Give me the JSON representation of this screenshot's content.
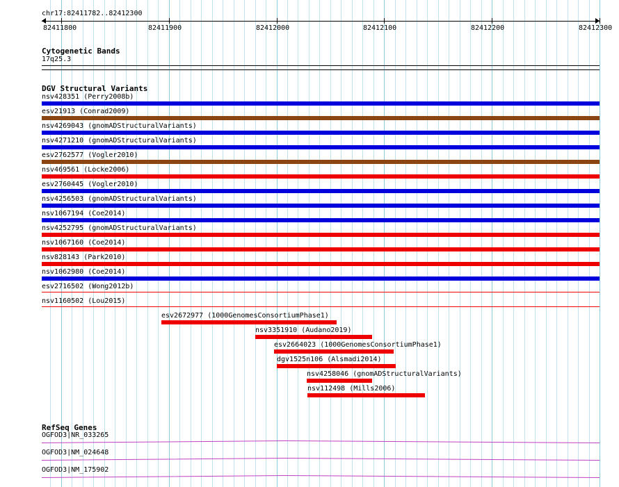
{
  "locus": "chr17:82411782..82412300",
  "ruler": {
    "start": 82411782,
    "end": 82412300,
    "ticks": [
      {
        "pos": 82411800,
        "label": "82411800"
      },
      {
        "pos": 82411900,
        "label": "82411900"
      },
      {
        "pos": 82412000,
        "label": "82412000"
      },
      {
        "pos": 82412100,
        "label": "82412100"
      },
      {
        "pos": 82412200,
        "label": "82412200"
      },
      {
        "pos": 82412300,
        "label": "82412300"
      }
    ],
    "grid_step": 10
  },
  "colors": {
    "grid": "#bfe3ee",
    "grid_major": "#8fc9dc",
    "blue": "#0000dd",
    "brown": "#8b4513",
    "red": "#ee0000",
    "gene": "#c040c0",
    "separator": "#000000"
  },
  "tracks": {
    "cytobands": {
      "title": "Cytogenetic Bands",
      "band_label": "17q25.3"
    },
    "dgv": {
      "title": "DGV Structural Variants",
      "full_span": [
        {
          "label": "nsv428351 (Perry2008b)",
          "color": "blue"
        },
        {
          "label": "esv21913 (Conrad2009)",
          "color": "brown"
        },
        {
          "label": "nsv4269043 (gnomADStructuralVariants)",
          "color": "blue"
        },
        {
          "label": "nsv4271210 (gnomADStructuralVariants)",
          "color": "blue"
        },
        {
          "label": "esv2762577 (Vogler2010)",
          "color": "brown"
        },
        {
          "label": "nsv469561 (Locke2006)",
          "color": "red"
        },
        {
          "label": "esv2760445 (Vogler2010)",
          "color": "blue"
        },
        {
          "label": "nsv4256503 (gnomADStructuralVariants)",
          "color": "blue"
        },
        {
          "label": "nsv1067194 (Coe2014)",
          "color": "blue"
        },
        {
          "label": "nsv4252795 (gnomADStructuralVariants)",
          "color": "red"
        },
        {
          "label": "nsv1067160 (Coe2014)",
          "color": "red"
        },
        {
          "label": "nsv828143 (Park2010)",
          "color": "red"
        },
        {
          "label": "nsv1062980 (Coe2014)",
          "color": "blue"
        },
        {
          "label": "esv2716502 (Wong2012b)",
          "color": "red",
          "thin": true
        },
        {
          "label": "nsv1160502 (Lou2015)",
          "color": "red",
          "thin": true
        }
      ],
      "partial": [
        {
          "label": "esv2672977 (1000GenomesConsortiumPhase1)",
          "start": 82411893,
          "end": 82412056,
          "color": "red"
        },
        {
          "label": "nsv3351910 (Audano2019)",
          "start": 82411980,
          "end": 82412089,
          "color": "red"
        },
        {
          "label": "esv2664023 (1000GenomesConsortiumPhase1)",
          "start": 82411998,
          "end": 82412109,
          "color": "red"
        },
        {
          "label": "dgv1525n106 (Alsmadi2014)",
          "start": 82412000,
          "end": 82412111,
          "color": "red"
        },
        {
          "label": "nsv4258046 (gnomADStructuralVariants)",
          "start": 82412028,
          "end": 82412089,
          "color": "red"
        },
        {
          "label": "nsv112498 (Mills2006)",
          "start": 82412029,
          "end": 82412138,
          "color": "red"
        }
      ]
    },
    "refseq": {
      "title": "RefSeq Genes",
      "genes": [
        {
          "label": "OGFOD3|NR_033265"
        },
        {
          "label": "OGFOD3|NM_024648"
        },
        {
          "label": "OGFOD3|NM_175902"
        }
      ]
    }
  }
}
